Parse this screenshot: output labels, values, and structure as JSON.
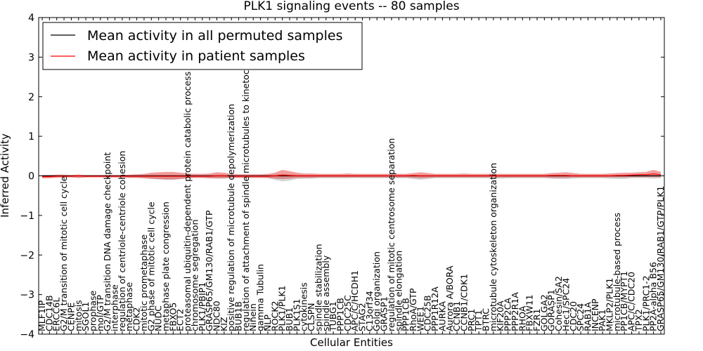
{
  "chart_data": {
    "type": "line",
    "title": "PLK1 signaling events -- 80 samples",
    "xlabel": "Cellular Entities",
    "ylabel": "Inferred Activity",
    "ylim": [
      -4,
      4
    ],
    "yticks": [
      "−4",
      "−3",
      "−2",
      "−1",
      "0",
      "1",
      "2",
      "3",
      "4"
    ],
    "legend_position": "top-left",
    "categories": [
      "MLF1IP",
      "CDC14B",
      "ERCC6L",
      "G2/M transition of mitotic cell cycle",
      "CENPE",
      "mitosis",
      "SGOL1",
      "prophase",
      "mol/GTP",
      "G2/M transition DNA damage checkpoint",
      "interphase",
      "regulation of centriole-centriole cohesion",
      "metaphase",
      "CDK2",
      "mitotic prometaphase",
      "G2 phase of mitotic cell cycle",
      "NUDC",
      "metaphase plate congression",
      "FBXO5",
      "ECT2",
      "proteasomal ubiquitin-dependent protein catabolic process",
      "chromosome segregation",
      "PLK1/PBIP1",
      "GRASP65/GM130/RAB1/GTP",
      "NDC80",
      "KIZ",
      "positive regulation of microtubule depolymerization",
      "BUB1B",
      "regulation of attachment of spindle microtubules to kinetochore",
      "Ninein",
      "gamma Tubulin",
      "NLP",
      "ROCK2",
      "PLK1/PLK1",
      "BUB1",
      "PLK1S1",
      "cytokinesis",
      "CLSPN",
      "spindle stabilization",
      "spindle assembly",
      "TUBG1",
      "PPP1CB",
      "CDC25C",
      "APC/C/HCDH1",
      "STAG2",
      "C13orf34",
      "Golgi organization",
      "GRASP1",
      "regulation of mitotic centrosome separation",
      "spindle elongation",
      "PPP1CB",
      "RhoA/GTP",
      "WEE1",
      "CDC25B",
      "PPP1R12A",
      "AURKA",
      "Aurora A/BORA",
      "CCNB1",
      "CCNB1/CDK1",
      "PRC1",
      "TPT1",
      "BTRC",
      "microtubule cytoskeleton organization",
      "KIF20A",
      "PPP2CA",
      "PPP2R1A",
      "RHOA",
      "FBXW11",
      "FZR1",
      "GOLGA2",
      "GORASP1",
      "Cohesin/SA2",
      "Hec1/SPC24",
      "CDC20",
      "SPC24",
      "RAB1A",
      "INCENP",
      "PAK1",
      "MKLP2/PLK1",
      "microtubule-based process",
      "PP1CB/MYPT1",
      "APC/C/CDC20",
      "TPX2",
      "PLK1/PRC1-2",
      "PP2A-alpha B56",
      "GRASP65/GM130/RAB1/GTP/PLK1"
    ],
    "series": [
      {
        "name": "Mean activity in all permuted samples",
        "color": "#000000",
        "values": [
          0,
          0,
          0,
          0,
          0,
          0,
          0,
          0,
          0,
          0,
          0,
          0,
          0,
          0,
          0,
          0,
          0,
          0,
          0,
          0,
          0,
          0,
          0,
          0,
          0,
          0,
          0,
          0,
          0,
          0,
          0,
          0,
          0,
          0,
          0,
          0,
          0,
          0,
          0,
          0,
          0,
          0,
          0,
          0,
          0,
          0,
          0,
          0,
          0,
          0,
          0,
          0,
          0,
          0,
          0,
          0,
          0,
          0,
          0,
          0,
          0,
          0,
          0,
          0,
          0,
          0,
          0,
          0,
          0,
          0,
          0,
          0,
          0,
          0,
          0,
          0,
          0,
          0,
          0,
          0,
          0,
          0,
          0,
          0,
          0,
          0
        ],
        "band_upper": [
          0.02,
          0.02,
          0.02,
          0.02,
          0.02,
          0.03,
          0.02,
          0.02,
          0.02,
          0.02,
          0.02,
          0.02,
          0.02,
          0.02,
          0.02,
          0.03,
          0.03,
          0.03,
          0.03,
          0.02,
          0.02,
          0.02,
          0.02,
          0.02,
          0.03,
          0.03,
          0.02,
          0.02,
          0.02,
          0.02,
          0.02,
          0.02,
          0.03,
          0.05,
          0.04,
          0.03,
          0.02,
          0.02,
          0.02,
          0.02,
          0.02,
          0.02,
          0.02,
          0.02,
          0.02,
          0.02,
          0.02,
          0.02,
          0.02,
          0.02,
          0.02,
          0.02,
          0.02,
          0.02,
          0.02,
          0.02,
          0.02,
          0.02,
          0.02,
          0.02,
          0.02,
          0.02,
          0.02,
          0.02,
          0.02,
          0.02,
          0.02,
          0.02,
          0.02,
          0.02,
          0.02,
          0.02,
          0.02,
          0.02,
          0.02,
          0.02,
          0.02,
          0.02,
          0.02,
          0.02,
          0.02,
          0.02,
          0.03,
          0.03,
          0.04,
          0.03
        ],
        "band_lower": [
          -0.05,
          -0.04,
          -0.03,
          -0.03,
          -0.03,
          -0.05,
          -0.04,
          -0.03,
          -0.03,
          -0.04,
          -0.04,
          -0.04,
          -0.05,
          -0.05,
          -0.06,
          -0.08,
          -0.09,
          -0.1,
          -0.1,
          -0.08,
          -0.06,
          -0.05,
          -0.05,
          -0.06,
          -0.07,
          -0.07,
          -0.05,
          -0.05,
          -0.05,
          -0.05,
          -0.05,
          -0.06,
          -0.1,
          -0.14,
          -0.12,
          -0.08,
          -0.07,
          -0.07,
          -0.06,
          -0.06,
          -0.06,
          -0.06,
          -0.06,
          -0.05,
          -0.06,
          -0.06,
          -0.06,
          -0.06,
          -0.06,
          -0.06,
          -0.06,
          -0.08,
          -0.1,
          -0.08,
          -0.06,
          -0.06,
          -0.06,
          -0.06,
          -0.06,
          -0.06,
          -0.06,
          -0.06,
          -0.07,
          -0.07,
          -0.06,
          -0.06,
          -0.06,
          -0.06,
          -0.06,
          -0.06,
          -0.07,
          -0.08,
          -0.08,
          -0.07,
          -0.06,
          -0.06,
          -0.06,
          -0.06,
          -0.07,
          -0.08,
          -0.08,
          -0.06,
          -0.06,
          -0.06,
          -0.07,
          -0.06
        ]
      },
      {
        "name": "Mean activity in patient samples",
        "color": "#ff0000",
        "values": [
          -0.02,
          -0.02,
          -0.01,
          -0.01,
          -0.01,
          0,
          -0.01,
          -0.01,
          -0.01,
          -0.01,
          -0.01,
          -0.01,
          -0.01,
          -0.01,
          -0.01,
          -0.01,
          -0.01,
          -0.01,
          -0.01,
          -0.01,
          -0.01,
          -0.01,
          -0.01,
          -0.01,
          0,
          0,
          -0.01,
          -0.01,
          -0.01,
          -0.01,
          -0.01,
          -0.01,
          0,
          0.02,
          0.01,
          0,
          0,
          0,
          0,
          0,
          0,
          0,
          0,
          0,
          0,
          0,
          0,
          0,
          0,
          0,
          0,
          0.01,
          0,
          0,
          0,
          0,
          0,
          0,
          0,
          0,
          0,
          0,
          0,
          0,
          0,
          0,
          0,
          0,
          0,
          0,
          0.01,
          0.01,
          0.01,
          0,
          0,
          0,
          0,
          0,
          0,
          0.01,
          0.01,
          0.02,
          0.03,
          0.03,
          0.05,
          0.03
        ],
        "band_upper": [
          0.02,
          0.02,
          0.03,
          0.03,
          0.02,
          0.03,
          0.02,
          0.02,
          0.02,
          0.02,
          0.02,
          0.02,
          0.03,
          0.04,
          0.05,
          0.08,
          0.09,
          0.1,
          0.1,
          0.08,
          0.06,
          0.05,
          0.05,
          0.06,
          0.09,
          0.08,
          0.05,
          0.04,
          0.04,
          0.04,
          0.04,
          0.05,
          0.08,
          0.15,
          0.12,
          0.08,
          0.06,
          0.06,
          0.05,
          0.05,
          0.05,
          0.05,
          0.06,
          0.05,
          0.05,
          0.05,
          0.05,
          0.05,
          0.05,
          0.05,
          0.05,
          0.07,
          0.09,
          0.07,
          0.05,
          0.05,
          0.05,
          0.05,
          0.06,
          0.05,
          0.05,
          0.05,
          0.05,
          0.05,
          0.05,
          0.05,
          0.05,
          0.05,
          0.05,
          0.05,
          0.07,
          0.08,
          0.09,
          0.07,
          0.05,
          0.05,
          0.05,
          0.05,
          0.06,
          0.07,
          0.08,
          0.08,
          0.09,
          0.1,
          0.15,
          0.1
        ],
        "band_lower": [
          -0.06,
          -0.06,
          -0.05,
          -0.04,
          -0.04,
          -0.05,
          -0.04,
          -0.04,
          -0.04,
          -0.04,
          -0.04,
          -0.04,
          -0.05,
          -0.05,
          -0.06,
          -0.07,
          -0.08,
          -0.09,
          -0.09,
          -0.08,
          -0.06,
          -0.05,
          -0.05,
          -0.06,
          -0.06,
          -0.06,
          -0.05,
          -0.05,
          -0.05,
          -0.05,
          -0.05,
          -0.05,
          -0.07,
          -0.08,
          -0.07,
          -0.05,
          -0.05,
          -0.05,
          -0.04,
          -0.04,
          -0.04,
          -0.04,
          -0.04,
          -0.04,
          -0.04,
          -0.04,
          -0.04,
          -0.04,
          -0.04,
          -0.04,
          -0.04,
          -0.05,
          -0.06,
          -0.05,
          -0.04,
          -0.04,
          -0.04,
          -0.04,
          -0.04,
          -0.04,
          -0.04,
          -0.04,
          -0.04,
          -0.04,
          -0.04,
          -0.04,
          -0.04,
          -0.04,
          -0.04,
          -0.04,
          -0.05,
          -0.05,
          -0.05,
          -0.04,
          -0.04,
          -0.04,
          -0.04,
          -0.04,
          -0.04,
          -0.04,
          -0.04,
          -0.03,
          -0.03,
          -0.03,
          -0.03,
          -0.03
        ]
      }
    ]
  }
}
